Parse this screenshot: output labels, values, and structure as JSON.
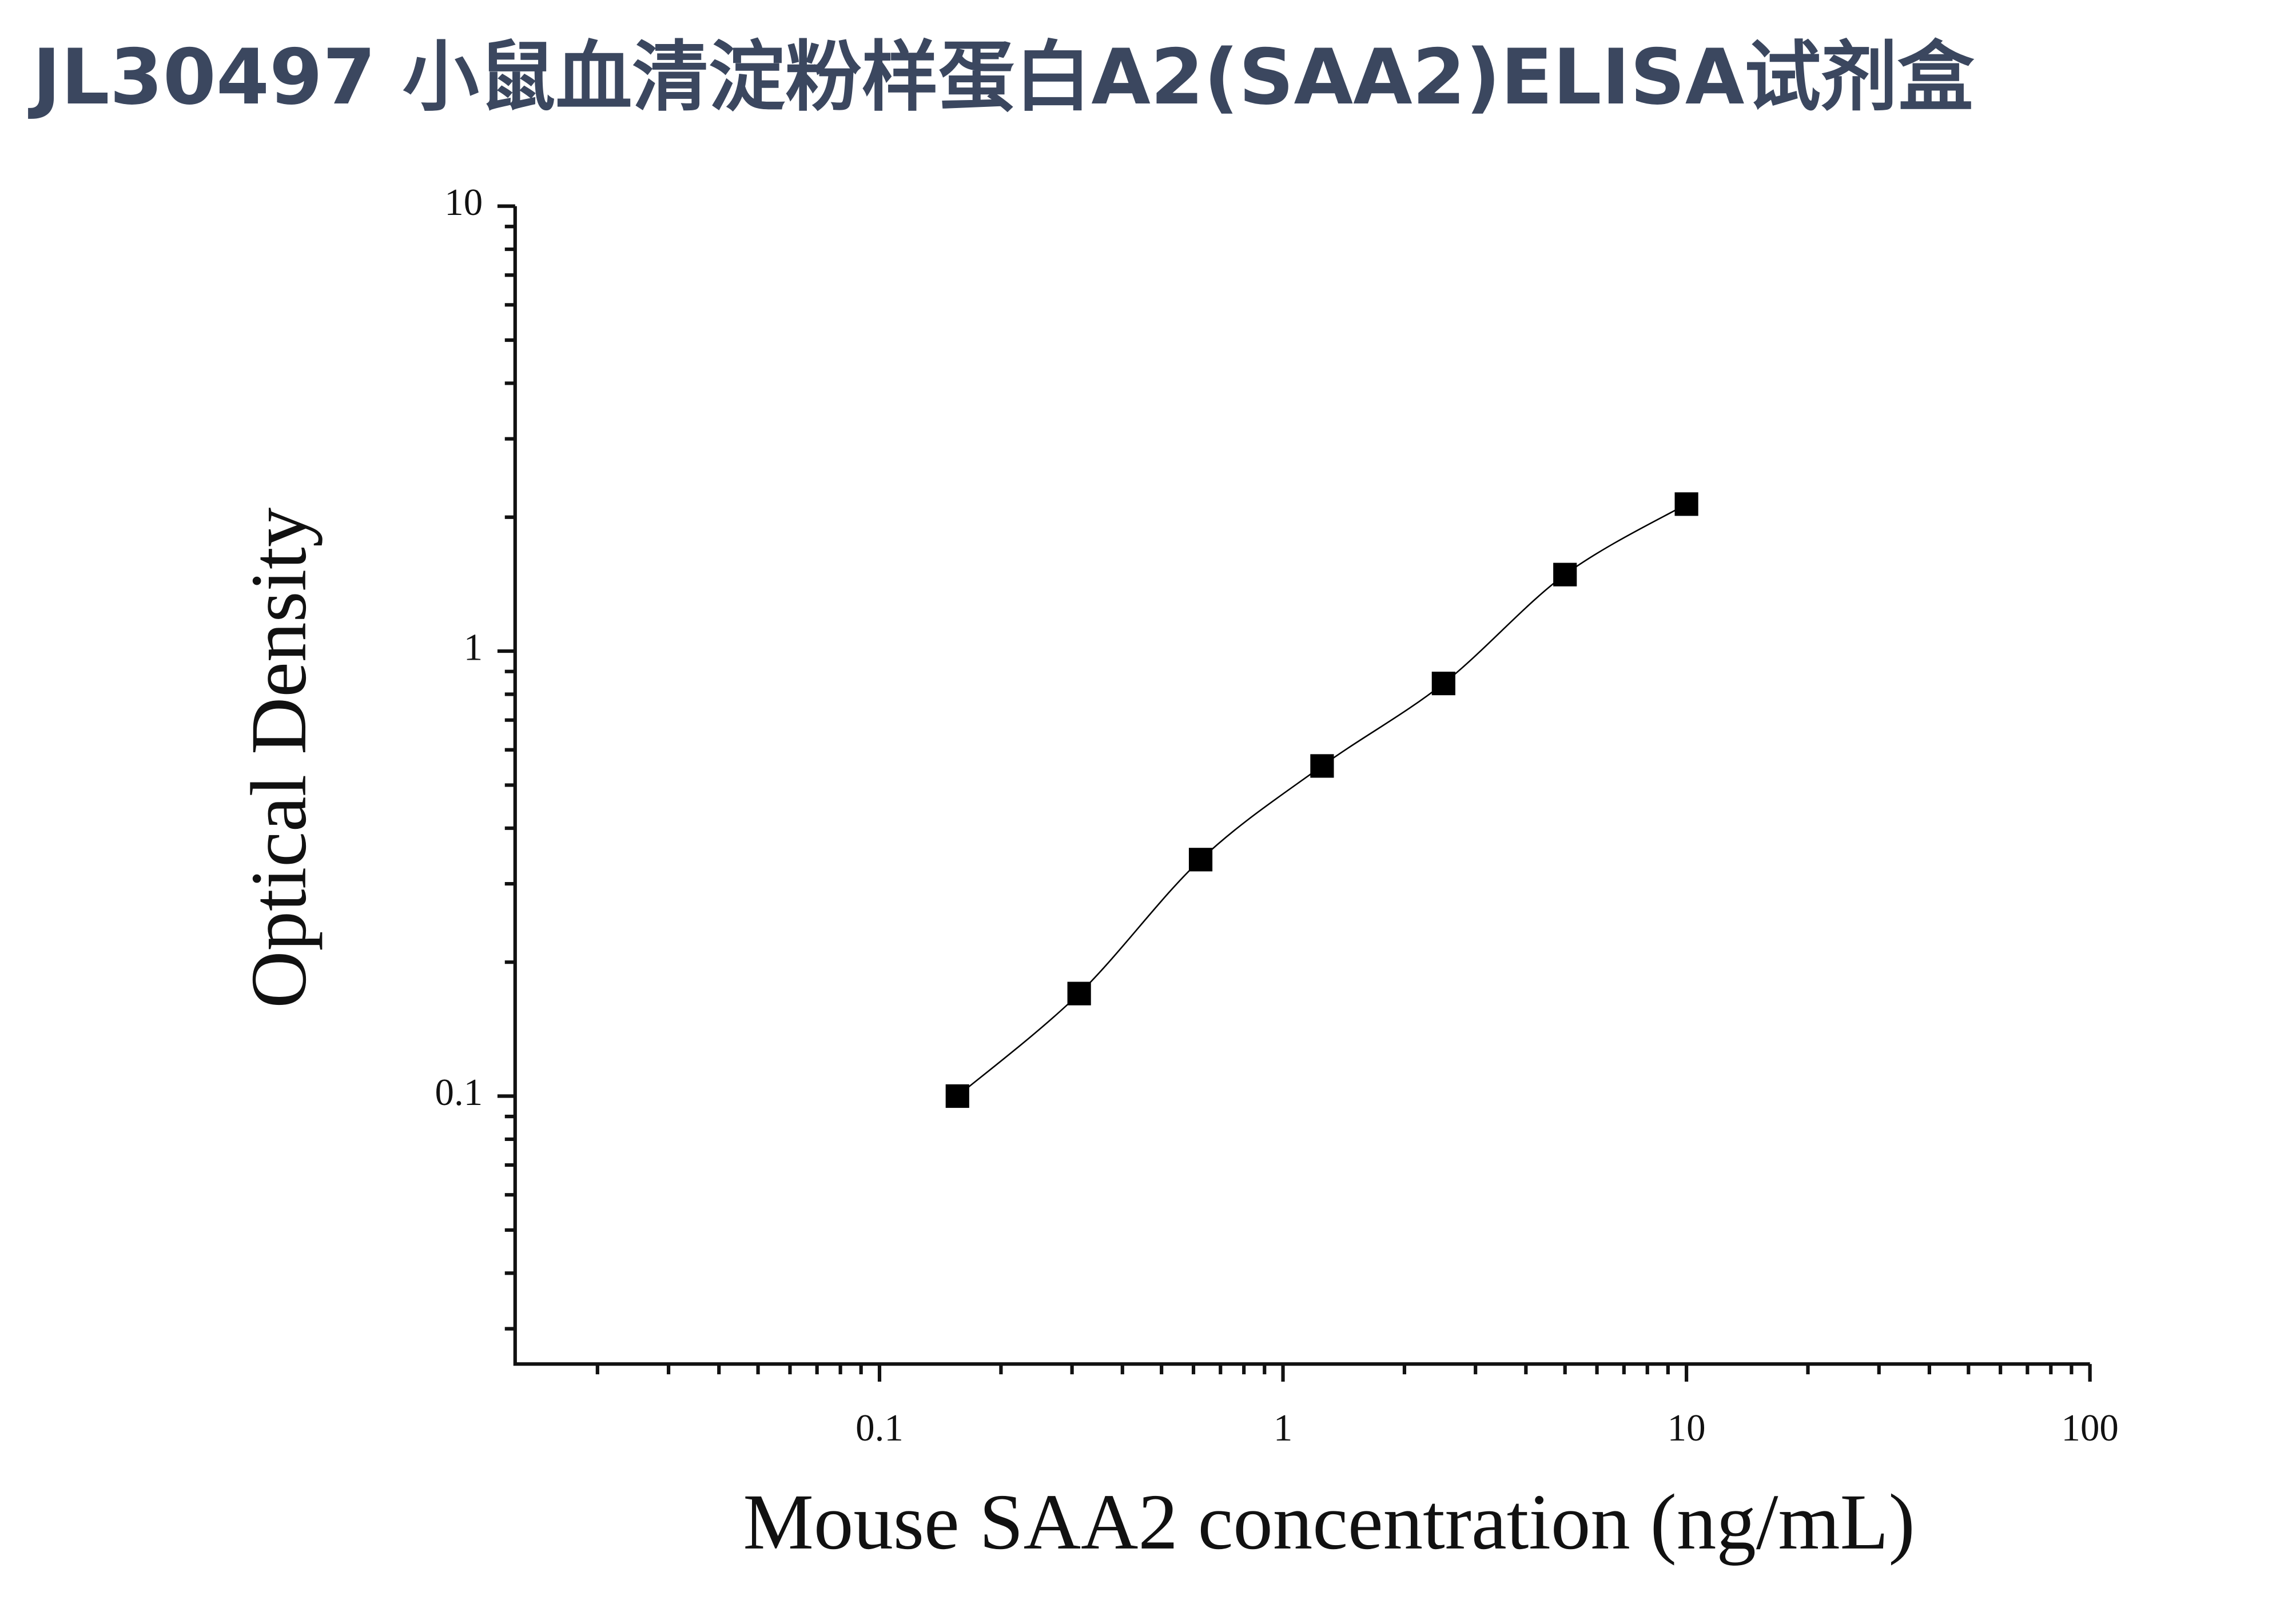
{
  "chart_data": {
    "type": "scatter",
    "title": "JL30497 小鼠血清淀粉样蛋白A2(SAA2)ELISA试剂盒",
    "x_label": "Mouse SAA2 concentration (ng/mL)",
    "y_label": "Optical Density",
    "x_scale": "log",
    "y_scale": "log",
    "xlim": [
      0.0125,
      100
    ],
    "ylim": [
      0.025,
      10
    ],
    "xticks": [
      0.1,
      1,
      10,
      100
    ],
    "yticks": [
      0.1,
      1,
      10
    ],
    "xminorticks": [
      0.02,
      0.03,
      0.04,
      0.05,
      0.06,
      0.07,
      0.08,
      0.09,
      0.2,
      0.3,
      0.4,
      0.5,
      0.6,
      0.7,
      0.8,
      0.9,
      2,
      3,
      4,
      5,
      6,
      7,
      8,
      9,
      20,
      30,
      40,
      50,
      60,
      70,
      80,
      90
    ],
    "yminorticks": [
      0.03,
      0.04,
      0.05,
      0.06,
      0.07,
      0.08,
      0.09,
      0.2,
      0.3,
      0.4,
      0.5,
      0.6,
      0.7,
      0.8,
      0.9,
      2,
      3,
      4,
      5,
      6,
      7,
      8,
      9
    ],
    "series": [
      {
        "color": "#000000",
        "x": [
          0.156,
          0.3125,
          0.625,
          1.25,
          2.5,
          5,
          10
        ],
        "values": [
          0.1,
          0.17,
          0.34,
          0.552,
          0.846,
          1.486,
          2.14
        ]
      }
    ]
  }
}
